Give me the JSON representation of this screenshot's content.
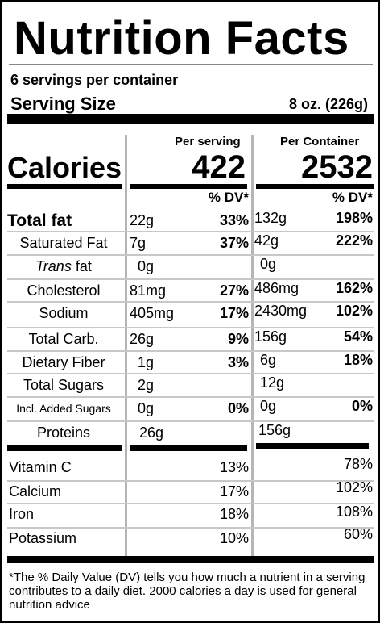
{
  "title": "Nutrition Facts",
  "servings_per_container": "6 servings per container",
  "serving_size": {
    "label": "Serving Size",
    "value": "8 oz. (226g)"
  },
  "columns": {
    "per_serving": "Per serving",
    "per_container": "Per Container"
  },
  "calories": {
    "label": "Calories",
    "per_serving": "422",
    "per_container": "2532"
  },
  "dv_header": "% DV*",
  "nutrients": [
    {
      "name": "Total fat",
      "serving_amount": "22g",
      "serving_dv": "33%",
      "container_amount": "132g",
      "container_dv": "198%"
    },
    {
      "name": "Saturated Fat",
      "serving_amount": "7g",
      "serving_dv": "37%",
      "container_amount": "42g",
      "container_dv": "222%"
    },
    {
      "name_italic": "Trans",
      "name_rest": " fat",
      "serving_amount": "0g",
      "serving_dv": "",
      "container_amount": "0g",
      "container_dv": ""
    },
    {
      "name": "Cholesterol",
      "serving_amount": "81mg",
      "serving_dv": "27%",
      "container_amount": "486mg",
      "container_dv": "162%"
    },
    {
      "name": "Sodium",
      "serving_amount": "405mg",
      "serving_dv": "17%",
      "container_amount": "2430mg",
      "container_dv": "102%"
    },
    {
      "name": "Total Carb.",
      "serving_amount": "26g",
      "serving_dv": "9%",
      "container_amount": "156g",
      "container_dv": "54%"
    },
    {
      "name": "Dietary Fiber",
      "serving_amount": "1g",
      "serving_dv": "3%",
      "container_amount": "6g",
      "container_dv": "18%"
    },
    {
      "name": "Total Sugars",
      "serving_amount": "2g",
      "serving_dv": "",
      "container_amount": "12g",
      "container_dv": ""
    },
    {
      "name": "Incl. Added Sugars",
      "serving_amount": "0g",
      "serving_dv": "0%",
      "container_amount": "0g",
      "container_dv": "0%"
    },
    {
      "name": "Proteins",
      "serving_amount": "26g",
      "serving_dv": "",
      "container_amount": "156g",
      "container_dv": ""
    }
  ],
  "vitamins": [
    {
      "name": "Vitamin C",
      "serving_dv": "13%",
      "container_dv": "78%"
    },
    {
      "name": "Calcium",
      "serving_dv": "17%",
      "container_dv": "102%"
    },
    {
      "name": "Iron",
      "serving_dv": "18%",
      "container_dv": "108%"
    },
    {
      "name": "Potassium",
      "serving_dv": "10%",
      "container_dv": "60%"
    }
  ],
  "footnote": "*The % Daily Value (DV) tells you how much a nutrient in a serving contributes to a daily diet. 2000 calories a day is used for general nutrition advice"
}
